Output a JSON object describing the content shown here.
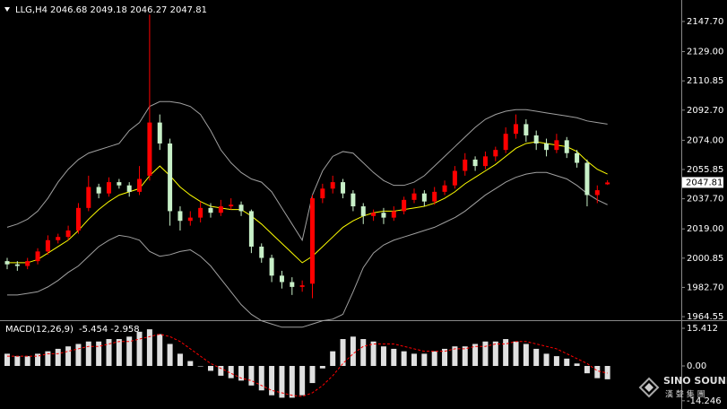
{
  "chart_data": [
    {
      "type": "candlestick",
      "title": "LLG,H4",
      "ohlc_label": "2046.68 2049.18 2046.27 2047.81",
      "up_color": "#ff0000",
      "down_color": "#c8f0c8",
      "open": [
        1999,
        1997,
        1996,
        1999,
        2005,
        2012,
        2014,
        2018,
        2032,
        2045,
        2041,
        2048,
        2046,
        2042,
        2052,
        2085,
        2072,
        2030,
        2024,
        2026,
        2032,
        2029,
        2033,
        2034,
        2030,
        2008,
        2001,
        1990,
        1986,
        1983,
        1985,
        2038,
        2044,
        2048,
        2041,
        2033,
        2027,
        2029,
        2026,
        2030,
        2037,
        2041,
        2036,
        2042,
        2046,
        2055,
        2062,
        2058,
        2064,
        2068,
        2078,
        2084,
        2077,
        2072,
        2068,
        2074,
        2066,
        2060,
        2040,
        2046.68
      ],
      "high": [
        2001,
        1999,
        2001,
        2007,
        2015,
        2016,
        2021,
        2035,
        2052,
        2047,
        2051,
        2050,
        2048,
        2058,
        2152,
        2090,
        2075,
        2033,
        2030,
        2036,
        2035,
        2037,
        2038,
        2036,
        2031,
        2010,
        2003,
        1993,
        1989,
        1987,
        2040,
        2047,
        2052,
        2050,
        2043,
        2035,
        2031,
        2032,
        2033,
        2039,
        2044,
        2043,
        2045,
        2049,
        2058,
        2066,
        2064,
        2067,
        2070,
        2082,
        2090,
        2087,
        2080,
        2075,
        2078,
        2076,
        2068,
        2062,
        2046,
        2049.18
      ],
      "low": [
        1994,
        1993,
        1994,
        1997,
        2003,
        2010,
        2012,
        2016,
        2030,
        2038,
        2039,
        2044,
        2039,
        2040,
        2049,
        2068,
        2021,
        2018,
        2021,
        2023,
        2026,
        2027,
        2031,
        2027,
        2004,
        1998,
        1986,
        1982,
        1978,
        1980,
        1976,
        2035,
        2041,
        2038,
        2030,
        2022,
        2024,
        2022,
        2024,
        2028,
        2035,
        2033,
        2034,
        2040,
        2044,
        2052,
        2055,
        2056,
        2061,
        2066,
        2075,
        2073,
        2068,
        2064,
        2066,
        2063,
        2057,
        2033,
        2035,
        2046.27
      ],
      "close": [
        1997,
        1996,
        1999,
        2005,
        2012,
        2014,
        2018,
        2032,
        2045,
        2041,
        2048,
        2046,
        2042,
        2050,
        2085,
        2072,
        2030,
        2024,
        2026,
        2032,
        2029,
        2033,
        2034,
        2030,
        2008,
        2001,
        1990,
        1986,
        1983,
        1984,
        2038,
        2044,
        2048,
        2041,
        2033,
        2027,
        2029,
        2026,
        2030,
        2037,
        2041,
        2036,
        2042,
        2046,
        2055,
        2062,
        2058,
        2064,
        2068,
        2078,
        2084,
        2077,
        2072,
        2068,
        2074,
        2066,
        2060,
        2040,
        2043,
        2047.81
      ],
      "lines": [
        {
          "color": "#ffff00",
          "values": [
            1998,
            1998,
            1998,
            2000,
            2004,
            2008,
            2012,
            2018,
            2025,
            2031,
            2036,
            2040,
            2042,
            2044,
            2052,
            2058,
            2052,
            2045,
            2040,
            2036,
            2033,
            2032,
            2031,
            2031,
            2027,
            2022,
            2016,
            2010,
            2004,
            1998,
            2002,
            2008,
            2014,
            2020,
            2024,
            2027,
            2029,
            2030,
            2030,
            2031,
            2032,
            2033,
            2035,
            2038,
            2042,
            2047,
            2051,
            2055,
            2059,
            2064,
            2069,
            2072,
            2073,
            2072,
            2071,
            2070,
            2067,
            2061,
            2056,
            2053
          ]
        },
        {
          "color": "#a0a0a0",
          "values": [
            2020,
            2022,
            2025,
            2030,
            2038,
            2048,
            2056,
            2062,
            2066,
            2068,
            2070,
            2072,
            2080,
            2085,
            2095,
            2098,
            2098,
            2097,
            2095,
            2090,
            2080,
            2068,
            2060,
            2054,
            2050,
            2048,
            2042,
            2032,
            2022,
            2012,
            2040,
            2055,
            2064,
            2067,
            2066,
            2060,
            2054,
            2049,
            2046,
            2046,
            2048,
            2052,
            2058,
            2064,
            2070,
            2076,
            2082,
            2087,
            2090,
            2092,
            2093,
            2093,
            2092,
            2091,
            2090,
            2089,
            2088,
            2086,
            2085,
            2084
          ]
        },
        {
          "color": "#a0a0a0",
          "values": [
            1978,
            1978,
            1979,
            1980,
            1983,
            1987,
            1992,
            1996,
            2002,
            2008,
            2012,
            2015,
            2014,
            2012,
            2005,
            2002,
            2003,
            2005,
            2006,
            2002,
            1996,
            1988,
            1980,
            1972,
            1966,
            1962,
            1960,
            1958,
            1958,
            1958,
            1960,
            1962,
            1963,
            1966,
            1980,
            1995,
            2004,
            2009,
            2012,
            2014,
            2016,
            2018,
            2020,
            2023,
            2026,
            2030,
            2035,
            2040,
            2044,
            2048,
            2051,
            2053,
            2054,
            2054,
            2052,
            2050,
            2046,
            2041,
            2037,
            2034
          ]
        }
      ],
      "current_price": {
        "value": 2047.81,
        "label": "2047.81"
      },
      "ylim": [
        1962.9,
        2158.8
      ],
      "yticks": [
        {
          "value": 2147.7,
          "label": "2147.70"
        },
        {
          "value": 2129,
          "label": "2129.00"
        },
        2110.85,
        {
          "value": 2092.7,
          "label": "2092.70"
        },
        {
          "value": 2074,
          "label": "2074.00"
        },
        2055.85,
        {
          "value": 2037.7,
          "label": "2037.70"
        },
        {
          "value": 2019,
          "label": "2019.00"
        },
        2000.85,
        {
          "value": 1982.7,
          "label": "1982.70"
        },
        1964.55
      ]
    },
    {
      "type": "macd",
      "title": "MACD(12,26,9)",
      "value_label": "-5.454 -2.958",
      "histogram_color": "#e0e0e0",
      "signal_color": "#ff0000",
      "histogram": [
        5,
        4,
        4,
        5,
        6,
        7,
        8,
        9,
        10,
        10,
        11,
        11,
        12,
        14,
        15,
        13,
        9,
        5,
        2,
        0,
        -2,
        -4,
        -5,
        -6,
        -8,
        -10,
        -12,
        -13,
        -13,
        -12,
        -7,
        -1,
        6,
        11,
        12,
        11,
        10,
        8,
        7,
        6,
        5,
        5,
        6,
        7,
        8,
        8,
        9,
        10,
        10,
        11,
        10,
        9,
        7,
        5,
        4,
        3,
        1,
        -3,
        -5,
        -5.454
      ],
      "signal": [
        4,
        4,
        4,
        4,
        5,
        5,
        6,
        7,
        8,
        8,
        9,
        10,
        10,
        11,
        12,
        13,
        12,
        10,
        7,
        4,
        1,
        -1,
        -3,
        -5,
        -6,
        -8,
        -10,
        -11,
        -12,
        -12.5,
        -11,
        -8,
        -4,
        1,
        5,
        8,
        9,
        9,
        9,
        8,
        7,
        6,
        6,
        6,
        7,
        7,
        8,
        8,
        9,
        9,
        10,
        10,
        9,
        8,
        7,
        5,
        3,
        1,
        -2,
        -2.958
      ],
      "ylim": [
        -17.25,
        18.35
      ],
      "yticks": [
        15.412,
        {
          "value": 0,
          "label": "0.00"
        },
        -14.246
      ]
    }
  ],
  "logo": {
    "name": "SINO SOUND",
    "subtitle": "漢 聲 集 團"
  }
}
